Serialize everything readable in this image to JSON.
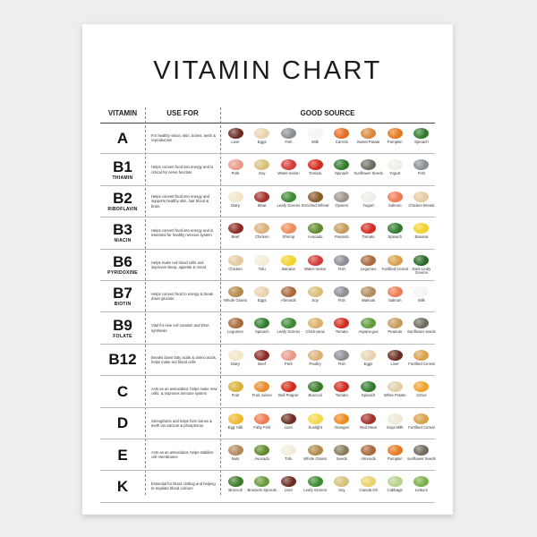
{
  "title": "VITAMIN CHART",
  "headers": {
    "vitamin": "VITAMIN",
    "use_for": "USE FOR",
    "good_source": "GOOD SOURCE"
  },
  "vitamins": [
    {
      "letter": "A",
      "sub": "",
      "use": "For healthy vision, skin, bones, teeth & reproduction",
      "sources": [
        "Liver",
        "Eggs",
        "Fish",
        "Milk",
        "Carrots",
        "Sweet Potato",
        "Pumpkin",
        "Spinach"
      ],
      "colors": [
        "#6b2d22",
        "#e9d3ae",
        "#8a8f95",
        "#f4f4f2",
        "#ea6a1e",
        "#d9883a",
        "#e8781f",
        "#2f7a2d"
      ]
    },
    {
      "letter": "B1",
      "sub": "THIAMIN",
      "use": "Helps convert food into energy and is critical for nerve function",
      "sources": [
        "Pork",
        "Soy",
        "Water-melon",
        "Tomato",
        "Spinach",
        "Sunflower Seeds",
        "Yogurt",
        "Fish"
      ],
      "colors": [
        "#e89a8a",
        "#d8c07a",
        "#d43a3a",
        "#d22a1e",
        "#2f7a2d",
        "#6e6a5e",
        "#efede6",
        "#8a8f95"
      ]
    },
    {
      "letter": "B2",
      "sub": "RIBOFLAVIN",
      "use": "Helps convert food into energy and supports healthy skin, hair blood & brain.",
      "sources": [
        "Dairy",
        "Meat",
        "Leafy Greens",
        "Enriched Wheat",
        "Oysters",
        "Yogurt",
        "Salmon",
        "Chicken Breast"
      ],
      "colors": [
        "#f1e6c8",
        "#a3302a",
        "#3b8a30",
        "#8a5a2a",
        "#9d968a",
        "#efede6",
        "#f07a52",
        "#e6c9a0"
      ]
    },
    {
      "letter": "B3",
      "sub": "NIACIN",
      "use": "Helps convert food into energy and is essential for healthy nervous system",
      "sources": [
        "Beef",
        "Chicken",
        "Shrimp",
        "Avocado",
        "Peanuts",
        "Tomato",
        "Spinach",
        "Banana"
      ],
      "colors": [
        "#8a2a22",
        "#dcb07a",
        "#ef8a5a",
        "#5e8a2a",
        "#c89a5a",
        "#d22a1e",
        "#2f7a2d",
        "#f2d22a"
      ]
    },
    {
      "letter": "B6",
      "sub": "PYRIDOXINE",
      "use": "Helps make red blood cells and improves sleep, appetite & mood",
      "sources": [
        "Chicken",
        "Tofu",
        "Banana",
        "Water-melon",
        "Fish",
        "Legumes",
        "Fortified Cereal",
        "Dark Leafy Greens"
      ],
      "colors": [
        "#e6c9a0",
        "#f2ecd8",
        "#f2d22a",
        "#d43a3a",
        "#8a8f95",
        "#a86a3a",
        "#d9a04a",
        "#2a6a28"
      ]
    },
    {
      "letter": "B7",
      "sub": "BIOTIN",
      "use": "Helps convert food to energy & break down glucose",
      "sources": [
        "Whole Grains",
        "Eggs",
        "Almonds",
        "Soy",
        "Fish",
        "Walnuts",
        "Salmon",
        "Milk"
      ],
      "colors": [
        "#b08a4a",
        "#e9d3ae",
        "#a8683a",
        "#d8c07a",
        "#8a8f95",
        "#b08a5a",
        "#f07a52",
        "#f4f4f2"
      ]
    },
    {
      "letter": "B9",
      "sub": "FOLATE",
      "use": "Vital for new cell creation and DNA synthesis",
      "sources": [
        "Legumes",
        "Spinach",
        "Leafy Greens",
        "Chick-peas",
        "Tomato",
        "Aspara-gus",
        "Peanuts",
        "Sunflower seeds"
      ],
      "colors": [
        "#a86a3a",
        "#2f7a2d",
        "#3b8a30",
        "#d9b06a",
        "#d22a1e",
        "#5e9a3a",
        "#c89a5a",
        "#6e6a5e"
      ]
    },
    {
      "letter": "B12",
      "sub": "",
      "use": "Breaks down fatty acids & amino acids, helps make red blood cells",
      "sources": [
        "Dairy",
        "Beef",
        "Pork",
        "Poultry",
        "Fish",
        "Eggs",
        "Liver",
        "Fortified Cereal"
      ],
      "colors": [
        "#f1e6c8",
        "#8a2a22",
        "#e89a8a",
        "#dcb07a",
        "#8a8f95",
        "#e9d3ae",
        "#6b2d22",
        "#d9a04a"
      ]
    },
    {
      "letter": "C",
      "sub": "",
      "use": "Acts as an antioxidant, helps make new cells, & improves immune system",
      "sources": [
        "Fruit",
        "Fruit Juices",
        "Bell Pepper",
        "Broccoli",
        "Tomato",
        "Spinach",
        "White Potato",
        "Citrus"
      ],
      "colors": [
        "#d9b03a",
        "#e88a2a",
        "#d22a1e",
        "#3b7a2a",
        "#d22a1e",
        "#2f7a2d",
        "#e0d0a8",
        "#f0a02a"
      ]
    },
    {
      "letter": "D",
      "sub": "",
      "use": "Strengthens and helps form bones & teeth via calcium & phosphorus",
      "sources": [
        "Egg Yolk",
        "Fatty Fish",
        "Liver",
        "Sunlight",
        "Oranges",
        "Red Meat",
        "Soya Milk",
        "Fortified Cereal"
      ],
      "colors": [
        "#f2b82a",
        "#f07a52",
        "#6b2d22",
        "#f5d84a",
        "#f08a1a",
        "#a3302a",
        "#efe8d6",
        "#d9a04a"
      ]
    },
    {
      "letter": "E",
      "sub": "",
      "use": "Acts as an antioxidant, helps stabilize cell membranes",
      "sources": [
        "Nuts",
        "Avocado",
        "Tofu",
        "Whole Grains",
        "Seeds",
        "Almonds",
        "Pumpkin",
        "sunflower Seeds"
      ],
      "colors": [
        "#b08a5a",
        "#5e8a2a",
        "#f2ecd8",
        "#b08a4a",
        "#8a7a5a",
        "#a8683a",
        "#e8781f",
        "#6e6a5e"
      ]
    },
    {
      "letter": "K",
      "sub": "",
      "use": "Essential for blood clotting and helping to regulate blood calcium",
      "sources": [
        "Broccoli",
        "Brussels Sprouts",
        "Liver",
        "Leafy Greens",
        "Soy",
        "Canola Oil",
        "Cabbage",
        "Lettuce"
      ],
      "colors": [
        "#3b7a2a",
        "#6a9a3a",
        "#6b2d22",
        "#3b8a30",
        "#d8c07a",
        "#e8d26a",
        "#b8d08a",
        "#7ab04a"
      ]
    }
  ]
}
